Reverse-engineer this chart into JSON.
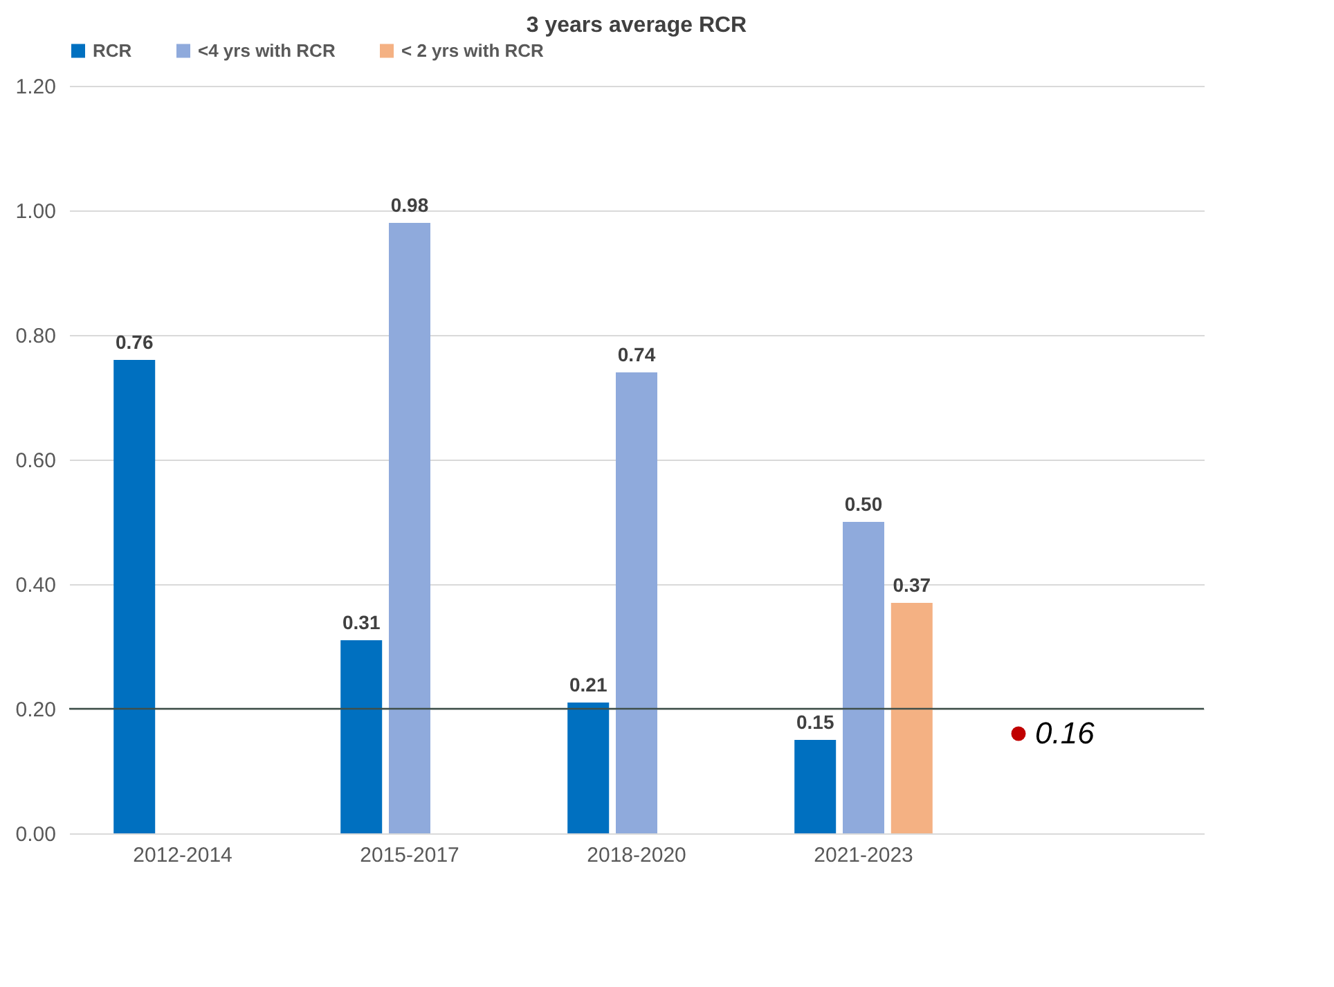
{
  "chart_data": {
    "type": "bar",
    "title": "3 years average RCR",
    "categories": [
      "2012-2014",
      "2015-2017",
      "2018-2020",
      "2021-2023",
      null
    ],
    "series": [
      {
        "name": "RCR",
        "color": "#0070c0",
        "values": [
          0.76,
          0.31,
          0.21,
          0.15,
          null
        ],
        "value_labels": [
          "0.76",
          "0.31",
          "0.21",
          "0.15",
          null
        ]
      },
      {
        "name": "<4 yrs with RCR",
        "color": "#8faadc",
        "values": [
          null,
          0.98,
          0.74,
          0.5,
          null
        ],
        "value_labels": [
          null,
          "0.98",
          "0.74",
          "0.50",
          null
        ]
      },
      {
        "name": "< 2 yrs with RCR",
        "color": "#f4b183",
        "values": [
          null,
          null,
          null,
          0.37,
          null
        ],
        "value_labels": [
          null,
          null,
          null,
          "0.37",
          null
        ]
      },
      {
        "type": "scatter",
        "color": "#c00000",
        "values": [
          null,
          null,
          null,
          null,
          0.16
        ],
        "value_labels": [
          null,
          null,
          null,
          null,
          "0.16"
        ]
      }
    ],
    "ylim": [
      0,
      1.2
    ],
    "yticks": [
      {
        "value": 0,
        "label": "0.00"
      },
      {
        "value": 0.2,
        "label": "0.20"
      },
      {
        "value": 0.4,
        "label": "0.40"
      },
      {
        "value": 0.6,
        "label": "0.60"
      },
      {
        "value": 0.8,
        "label": "0.80"
      },
      {
        "value": 1.0,
        "label": "1.00"
      },
      {
        "value": 1.2,
        "label": "1.20"
      }
    ],
    "ref_lines": [
      {
        "axis": "y",
        "value": 0.2,
        "color": "#3f4f4a"
      }
    ],
    "marker": "circle",
    "grid": "y",
    "legend": "top"
  }
}
